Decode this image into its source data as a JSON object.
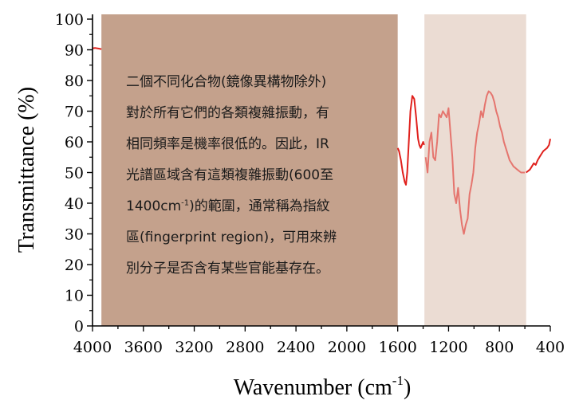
{
  "chart_data": {
    "type": "line",
    "xlabel": "Wavenumber (cm",
    "xlabel_sup": "-1",
    "xlabel_end": ")",
    "ylabel": "Transmittance (%)",
    "xlim": [
      4000,
      400
    ],
    "ylim": [
      0,
      100
    ],
    "x_ticks": [
      "4000",
      "3600",
      "3200",
      "2800",
      "2400",
      "2000",
      "1600",
      "1200",
      "800",
      "400"
    ],
    "y_ticks": [
      "0",
      "10",
      "20",
      "30",
      "40",
      "50",
      "60",
      "70",
      "80",
      "90",
      "100"
    ],
    "regions": [
      {
        "x_from": 3930,
        "x_to": 1600,
        "color": "#c4a18c"
      },
      {
        "x_from": 1390,
        "x_to": 590,
        "color": "#ebdcd3"
      }
    ],
    "series": [
      {
        "color": "#e0201c",
        "x": [
          4000,
          3980,
          3950,
          3930,
          1600,
          1590,
          1575,
          1560,
          1545,
          1535,
          1525,
          1515,
          1500,
          1485,
          1470,
          1455,
          1440,
          1430,
          1420,
          1410,
          1400,
          1392,
          1380,
          1365,
          1350,
          1335,
          1320,
          1305,
          1290,
          1275,
          1260,
          1245,
          1230,
          1215,
          1200,
          1185,
          1170,
          1155,
          1140,
          1125,
          1110,
          1095,
          1080,
          1065,
          1050,
          1035,
          1020,
          1005,
          990,
          975,
          960,
          945,
          930,
          915,
          900,
          885,
          870,
          855,
          840,
          825,
          810,
          795,
          780,
          765,
          750,
          735,
          720,
          705,
          690,
          675,
          660,
          645,
          630,
          615,
          600,
          590,
          575,
          560,
          545,
          530,
          515,
          500,
          485,
          470,
          455,
          440,
          425,
          410,
          400
        ],
        "y": [
          90.5,
          90.6,
          90.4,
          90.2,
          58,
          57,
          54,
          50,
          47,
          46,
          50,
          58,
          70,
          75,
          74,
          68,
          61,
          59,
          58,
          59,
          60,
          59,
          55,
          50,
          60,
          63,
          55,
          54,
          60,
          69,
          68,
          70,
          69,
          68,
          71,
          63,
          55,
          43,
          40,
          45,
          38,
          33,
          30,
          33,
          35,
          43,
          46,
          50,
          58,
          63,
          66,
          70,
          68,
          72,
          75,
          76.5,
          76,
          75,
          73,
          70,
          68,
          65,
          63,
          60,
          58,
          56,
          54,
          53,
          52,
          51.5,
          51,
          50.5,
          50,
          50,
          50,
          50,
          50.5,
          51,
          52,
          53,
          52.5,
          54,
          55,
          56,
          57,
          57.5,
          58,
          59,
          61
        ]
      }
    ]
  },
  "annotation": {
    "lines": [
      "二個不同化合物(鏡像異構物除外)",
      "對於所有它們的各類複雜振動，有",
      "相同頻率是機率很低的。因此，IR",
      "光譜區域含有這類複雜振動(600至",
      "1400cm",
      "區(fingerprint region)，可用來辨",
      "別分子是否含有某些官能基存在。"
    ],
    "line5_sup": "-1",
    "line5_end": ")的範圍，通常稱為指紋"
  }
}
